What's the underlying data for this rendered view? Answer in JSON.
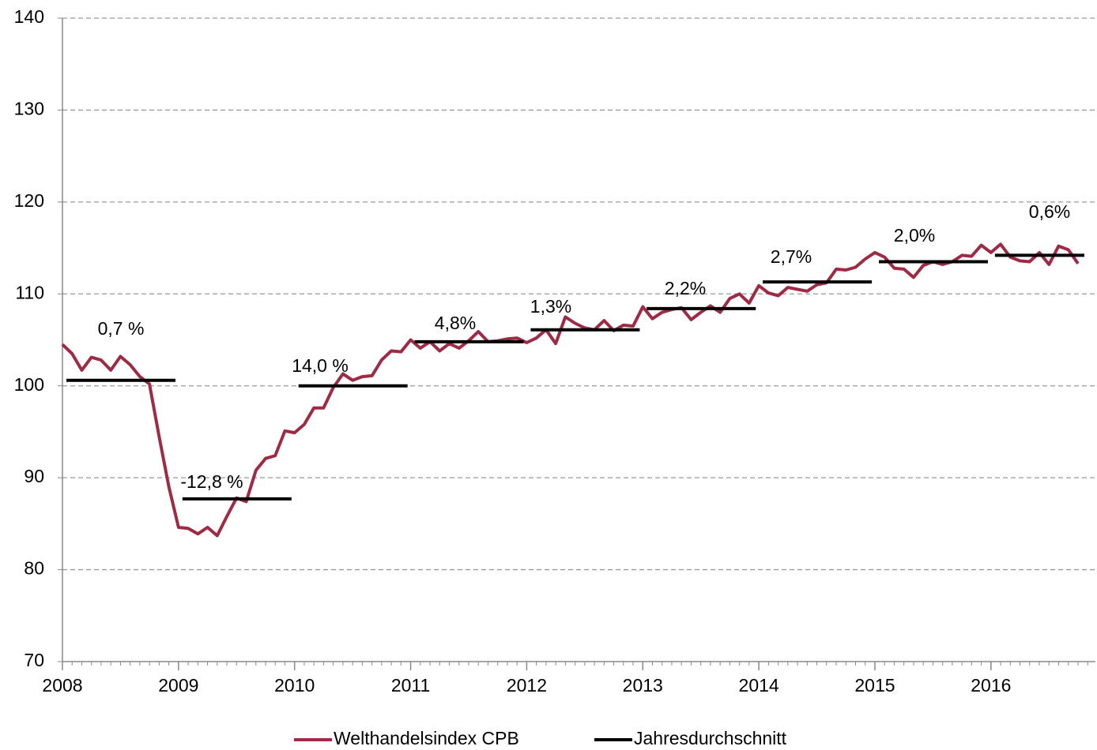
{
  "chart_data": {
    "type": "line",
    "xlim": [
      2008,
      2016.9
    ],
    "xticks": [
      2008,
      2009,
      2010,
      2011,
      2012,
      2013,
      2014,
      2015,
      2016
    ],
    "ylim": [
      70,
      140
    ],
    "yticks": [
      70,
      80,
      90,
      100,
      110,
      120,
      130,
      140
    ],
    "grid": true,
    "legend": "bottom",
    "series": [
      {
        "name": "Welthandelsindex CPB",
        "color": "#9e2a45",
        "x": [
          2008.0,
          2008.083,
          2008.167,
          2008.25,
          2008.333,
          2008.417,
          2008.5,
          2008.583,
          2008.667,
          2008.75,
          2008.833,
          2008.917,
          2009.0,
          2009.083,
          2009.167,
          2009.25,
          2009.333,
          2009.417,
          2009.5,
          2009.583,
          2009.667,
          2009.75,
          2009.833,
          2009.917,
          2010.0,
          2010.083,
          2010.167,
          2010.25,
          2010.333,
          2010.417,
          2010.5,
          2010.583,
          2010.667,
          2010.75,
          2010.833,
          2010.917,
          2011.0,
          2011.083,
          2011.167,
          2011.25,
          2011.333,
          2011.417,
          2011.5,
          2011.583,
          2011.667,
          2011.75,
          2011.833,
          2011.917,
          2012.0,
          2012.083,
          2012.167,
          2012.25,
          2012.333,
          2012.417,
          2012.5,
          2012.583,
          2012.667,
          2012.75,
          2012.833,
          2012.917,
          2013.0,
          2013.083,
          2013.167,
          2013.25,
          2013.333,
          2013.417,
          2013.5,
          2013.583,
          2013.667,
          2013.75,
          2013.833,
          2013.917,
          2014.0,
          2014.083,
          2014.167,
          2014.25,
          2014.333,
          2014.417,
          2014.5,
          2014.583,
          2014.667,
          2014.75,
          2014.833,
          2014.917,
          2015.0,
          2015.083,
          2015.167,
          2015.25,
          2015.333,
          2015.417,
          2015.5,
          2015.583,
          2015.667,
          2015.75,
          2015.833,
          2015.917,
          2016.0,
          2016.083,
          2016.167,
          2016.25,
          2016.333,
          2016.417,
          2016.5,
          2016.583,
          2016.667,
          2016.75
        ],
        "values": [
          104.5,
          103.5,
          101.7,
          103.1,
          102.8,
          101.7,
          103.2,
          102.3,
          101.0,
          100.2,
          94.5,
          89.0,
          84.6,
          84.5,
          83.9,
          84.6,
          83.7,
          85.8,
          87.8,
          87.4,
          90.8,
          92.1,
          92.4,
          95.1,
          94.9,
          95.8,
          97.6,
          97.6,
          99.8,
          101.3,
          100.6,
          101.0,
          101.1,
          102.8,
          103.8,
          103.7,
          105.0,
          104.1,
          104.8,
          103.8,
          104.6,
          104.1,
          104.9,
          105.9,
          104.8,
          104.9,
          105.1,
          105.2,
          104.7,
          105.2,
          106.1,
          104.6,
          107.5,
          106.8,
          106.3,
          106.1,
          107.1,
          106.0,
          106.6,
          106.5,
          108.6,
          107.3,
          108.0,
          108.3,
          108.5,
          107.2,
          108.0,
          108.7,
          108.0,
          109.5,
          110.0,
          109.0,
          110.9,
          110.1,
          109.8,
          110.7,
          110.5,
          110.3,
          111.0,
          111.2,
          112.7,
          112.6,
          112.9,
          113.8,
          114.5,
          114.0,
          112.8,
          112.7,
          111.8,
          113.1,
          113.5,
          113.2,
          113.5,
          114.2,
          114.1,
          115.3,
          114.5,
          115.4,
          114.0,
          113.6,
          113.5,
          114.5,
          113.2,
          115.2,
          114.8,
          113.3
        ]
      },
      {
        "name": "Jahresdurchschnitt",
        "color": "#000000",
        "x": [
          2008,
          2009,
          2010,
          2011,
          2012,
          2013,
          2014,
          2015,
          2016
        ],
        "values": [
          100.6,
          87.7,
          100.0,
          104.8,
          106.1,
          108.4,
          111.3,
          113.5,
          114.2
        ],
        "annotations": [
          "0,7 %",
          "-12,8 %",
          "14,0 %",
          "4,8%",
          "1,3%",
          "2,2%",
          "2,7%",
          "2,0%",
          "0,6%"
        ]
      }
    ]
  }
}
